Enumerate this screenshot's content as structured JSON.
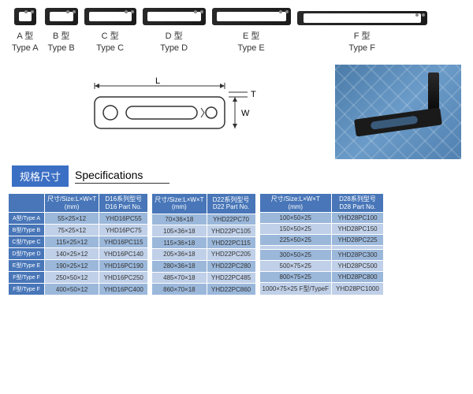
{
  "products": [
    {
      "cn": "A 型",
      "en": "Type A",
      "cls": "p-a"
    },
    {
      "cn": "B 型",
      "en": "Type B",
      "cls": "p-b"
    },
    {
      "cn": "C 型",
      "en": "Type C",
      "cls": "p-c"
    },
    {
      "cn": "D 型",
      "en": "Type D",
      "cls": "p-d"
    },
    {
      "cn": "E 型",
      "en": "Type E",
      "cls": "p-e"
    },
    {
      "cn": "F 型",
      "en": "Type F",
      "cls": "p-f"
    }
  ],
  "diagram": {
    "L": "L",
    "W": "W",
    "T": "T"
  },
  "spec": {
    "badge": "规格尺寸",
    "title": "Specifications"
  },
  "headers": {
    "size": "尺寸/Size:L×W×T",
    "mm": "(mm)",
    "d16": "D16系列型号",
    "d16p": "D16 Part No.",
    "d22": "D22系列型号",
    "d22p": "D22 Part No.",
    "d28": "D28系列型号",
    "d28p": "D28 Part No."
  },
  "table1": {
    "rows": [
      {
        "t": "A型/Type A",
        "s": "55×25×12",
        "p": "YHD16PC55"
      },
      {
        "t": "B型/Type B",
        "s": "75×25×12",
        "p": "YHD16PC75"
      },
      {
        "t": "C型/Type C",
        "s": "115×25×12",
        "p": "YHD16PC115"
      },
      {
        "t": "D型/Type D",
        "s": "140×25×12",
        "p": "YHD16PC140"
      },
      {
        "t": "E型/Type E",
        "s": "190×25×12",
        "p": "YHD16PC190"
      },
      {
        "t": "F型/Type F",
        "s": "250×50×12",
        "p": "YHD16PC250"
      },
      {
        "t": "F型/Type F",
        "s": "400×50×12",
        "p": "YHD16PC400"
      }
    ]
  },
  "table2": {
    "rows": [
      {
        "s": "70×36×18",
        "p": "YHD22PC70"
      },
      {
        "s": "105×36×18",
        "p": "YHD22PC105"
      },
      {
        "s": "115×36×18",
        "p": "YHD22PC115"
      },
      {
        "s": "205×36×18",
        "p": "YHD22PC205"
      },
      {
        "s": "280×36×18",
        "p": "YHD22PC280"
      },
      {
        "s": "485×70×18",
        "p": "YHD22PC485"
      },
      {
        "s": "860×70×18",
        "p": "YHD22PC860"
      }
    ]
  },
  "table3": {
    "rows": [
      {
        "s": "100×50×25",
        "p": "YHD28PC100"
      },
      {
        "s": "150×50×25",
        "p": "YHD28PC150"
      },
      {
        "s": "225×50×25",
        "p": "YHD28PC225"
      },
      {
        "s": "",
        "p": ""
      },
      {
        "s": "300×50×25",
        "p": "YHD28PC300"
      },
      {
        "s": "500×75×25",
        "p": "YHD28PC500"
      },
      {
        "s": "800×75×25",
        "p": "YHD28PC800"
      },
      {
        "s": "1000×75×25 F型/TypeF",
        "p": "YHD28PC1000"
      }
    ]
  }
}
